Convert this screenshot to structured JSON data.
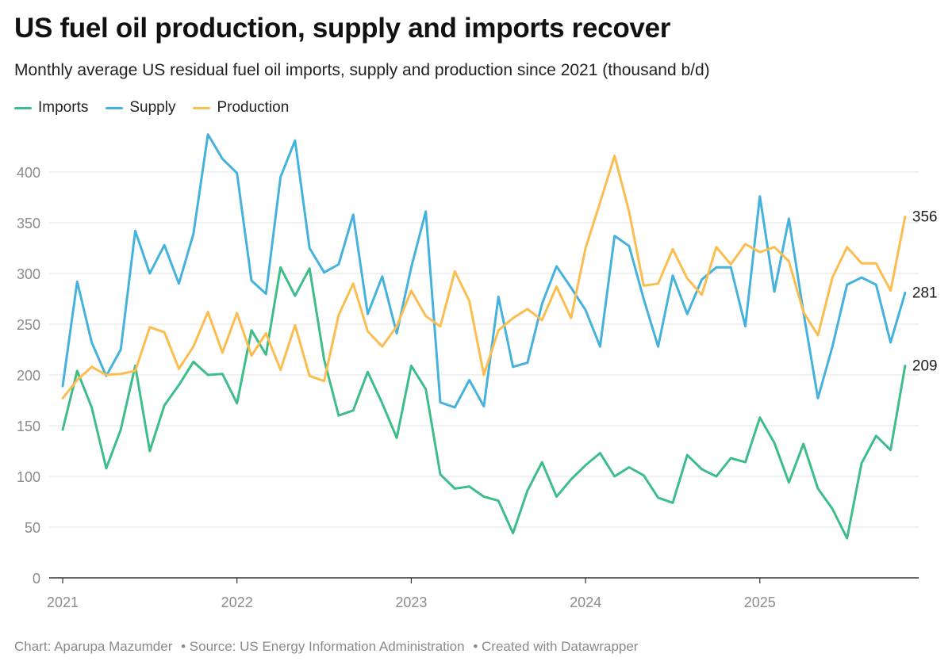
{
  "header": {
    "title": "US fuel oil production, supply and imports recover",
    "subtitle": "Monthly average US residual fuel oil imports, supply and production since 2021 (thousand b/d)"
  },
  "footer": {
    "credit": "Chart: Aparupa Mazumder",
    "source": "• Source: US Energy Information Administration",
    "tool": "• Created with Datawrapper"
  },
  "chart_data": {
    "type": "line",
    "title": "US fuel oil production, supply and imports recover",
    "subtitle": "Monthly average US residual fuel oil imports, supply and production since 2021 (thousand b/d)",
    "x_start": "2021-01",
    "x_ticks": [
      "2021",
      "2022",
      "2023",
      "2024",
      "2025"
    ],
    "ylim": [
      0,
      440
    ],
    "y_ticks": [
      0,
      50,
      100,
      150,
      200,
      250,
      300,
      350,
      400
    ],
    "grid": true,
    "legend_position": "top-left",
    "series": [
      {
        "name": "Imports",
        "color": "#3dbd8a",
        "end_label": "209",
        "values": [
          146,
          204,
          168,
          108,
          146,
          209,
          125,
          170,
          190,
          213,
          200,
          201,
          172,
          244,
          220,
          306,
          278,
          305,
          215,
          160,
          165,
          203,
          172,
          138,
          209,
          186,
          102,
          88,
          90,
          80,
          76,
          44,
          86,
          114,
          80,
          97,
          111,
          123,
          100,
          109,
          101,
          79,
          74,
          121,
          107,
          100,
          118,
          114,
          158,
          133,
          94,
          132,
          88,
          68,
          39,
          113,
          140,
          126,
          209
        ]
      },
      {
        "name": "Supply",
        "color": "#45b2de",
        "end_label": "281",
        "values": [
          189,
          292,
          232,
          199,
          225,
          342,
          300,
          328,
          290,
          339,
          437,
          413,
          399,
          293,
          280,
          395,
          431,
          325,
          301,
          309,
          358,
          260,
          297,
          241,
          306,
          361,
          173,
          168,
          195,
          169,
          277,
          208,
          212,
          270,
          307,
          286,
          264,
          228,
          337,
          327,
          275,
          228,
          298,
          260,
          294,
          306,
          306,
          248,
          376,
          282,
          354,
          262,
          177,
          228,
          289,
          296,
          289,
          232,
          281
        ]
      },
      {
        "name": "Production",
        "color": "#fbbd4f",
        "end_label": "356",
        "values": [
          177,
          195,
          208,
          200,
          201,
          204,
          247,
          242,
          206,
          228,
          262,
          222,
          261,
          219,
          241,
          205,
          249,
          199,
          194,
          259,
          290,
          243,
          228,
          248,
          283,
          258,
          248,
          302,
          273,
          200,
          244,
          256,
          265,
          254,
          287,
          256,
          325,
          370,
          416,
          361,
          288,
          290,
          324,
          295,
          279,
          326,
          309,
          329,
          321,
          326,
          312,
          262,
          239,
          296,
          326,
          310,
          310,
          283,
          356
        ]
      }
    ]
  }
}
